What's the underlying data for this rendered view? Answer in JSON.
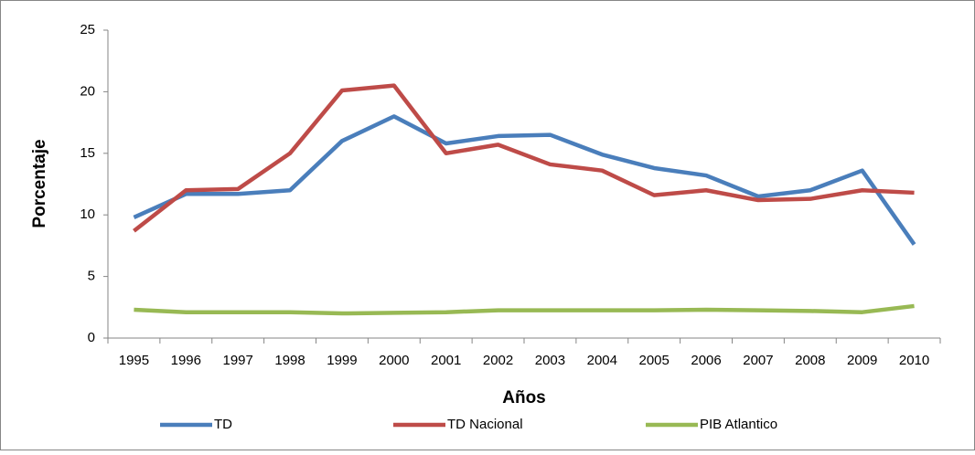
{
  "chart_data": {
    "type": "line",
    "x_label": "Años",
    "y_label": "Porcentaje",
    "categories": [
      "1995",
      "1996",
      "1997",
      "1998",
      "1999",
      "2000",
      "2001",
      "2002",
      "2003",
      "2004",
      "2005",
      "2006",
      "2007",
      "2008",
      "2009",
      "2010"
    ],
    "series": [
      {
        "name": "TD",
        "color": "#4a7ebb",
        "values": [
          9.8,
          11.7,
          11.7,
          12.0,
          16.0,
          18.0,
          15.8,
          16.4,
          16.5,
          14.9,
          13.8,
          13.2,
          11.5,
          12.0,
          13.6,
          7.6
        ]
      },
      {
        "name": "TD Nacional",
        "color": "#be4b48",
        "values": [
          8.7,
          12.0,
          12.1,
          15.0,
          20.1,
          20.5,
          15.0,
          15.7,
          14.1,
          13.6,
          11.6,
          12.0,
          11.2,
          11.3,
          12.0,
          11.8
        ]
      },
      {
        "name": "PIB Atlantico",
        "color": "#98b954",
        "values": [
          2.3,
          2.1,
          2.1,
          2.1,
          2.0,
          2.05,
          2.1,
          2.25,
          2.25,
          2.25,
          2.25,
          2.3,
          2.25,
          2.2,
          2.1,
          2.6
        ]
      }
    ],
    "ylim": [
      0,
      25
    ],
    "yticks": [
      0,
      5,
      10,
      15,
      20,
      25
    ],
    "grid": false,
    "legend": "bottom"
  }
}
